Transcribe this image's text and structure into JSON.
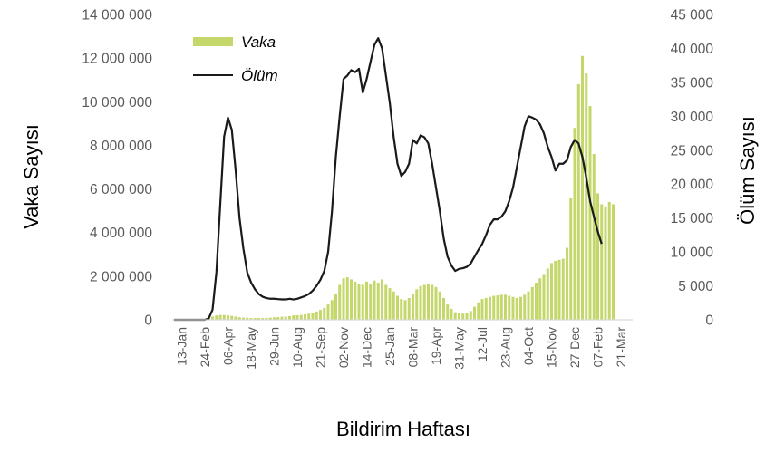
{
  "chart_data": {
    "type": "bar+line",
    "title": "",
    "xlabel": "Bildirim Haftası",
    "ylabel_left": "Vaka Sayısı",
    "ylabel_right": "Ölüm Sayısı",
    "ylim_left": [
      0,
      14000000
    ],
    "ylim_right": [
      0,
      45000
    ],
    "yticks_left": [
      {
        "value": 0,
        "label": "0"
      },
      {
        "value": 2000000,
        "label": "2 000 000"
      },
      {
        "value": 4000000,
        "label": "4 000 000"
      },
      {
        "value": 6000000,
        "label": "6 000 000"
      },
      {
        "value": 8000000,
        "label": "8 000 000"
      },
      {
        "value": 10000000,
        "label": "10 000 000"
      },
      {
        "value": 12000000,
        "label": "12 000 000"
      },
      {
        "value": 14000000,
        "label": "14 000 000"
      }
    ],
    "yticks_right": [
      {
        "value": 0,
        "label": "0"
      },
      {
        "value": 5000,
        "label": "5 000"
      },
      {
        "value": 10000,
        "label": "10 000"
      },
      {
        "value": 15000,
        "label": "15 000"
      },
      {
        "value": 20000,
        "label": "20 000"
      },
      {
        "value": 25000,
        "label": "25 000"
      },
      {
        "value": 30000,
        "label": "30 000"
      },
      {
        "value": 35000,
        "label": "35 000"
      },
      {
        "value": 40000,
        "label": "40 000"
      },
      {
        "value": 45000,
        "label": "45 000"
      }
    ],
    "xticks": [
      {
        "index": 2,
        "label": "13-Jan"
      },
      {
        "index": 8,
        "label": "24-Feb"
      },
      {
        "index": 14,
        "label": "06-Apr"
      },
      {
        "index": 20,
        "label": "18-May"
      },
      {
        "index": 26,
        "label": "29-Jun"
      },
      {
        "index": 32,
        "label": "10-Aug"
      },
      {
        "index": 38,
        "label": "21-Sep"
      },
      {
        "index": 44,
        "label": "02-Nov"
      },
      {
        "index": 50,
        "label": "14-Dec"
      },
      {
        "index": 56,
        "label": "25-Jan"
      },
      {
        "index": 62,
        "label": "08-Mar"
      },
      {
        "index": 68,
        "label": "19-Apr"
      },
      {
        "index": 74,
        "label": "31-May"
      },
      {
        "index": 80,
        "label": "12-Jul"
      },
      {
        "index": 86,
        "label": "23-Aug"
      },
      {
        "index": 92,
        "label": "04-Oct"
      },
      {
        "index": 98,
        "label": "15-Nov"
      },
      {
        "index": 104,
        "label": "27-Dec"
      },
      {
        "index": 110,
        "label": "07-Feb"
      },
      {
        "index": 116,
        "label": "21-Mar"
      }
    ],
    "grid": false,
    "legend_position": "top-left",
    "series": [
      {
        "name": "Vaka",
        "type": "bar",
        "axis": "left",
        "color": "#c4d76a",
        "values": [
          10000,
          10000,
          10000,
          10000,
          10000,
          10000,
          10000,
          10000,
          20000,
          60000,
          150000,
          200000,
          220000,
          220000,
          200000,
          180000,
          150000,
          120000,
          100000,
          90000,
          80000,
          80000,
          80000,
          80000,
          90000,
          100000,
          110000,
          120000,
          140000,
          150000,
          170000,
          200000,
          210000,
          220000,
          250000,
          280000,
          320000,
          380000,
          450000,
          550000,
          700000,
          900000,
          1200000,
          1600000,
          1900000,
          1950000,
          1850000,
          1750000,
          1650000,
          1600000,
          1750000,
          1650000,
          1800000,
          1700000,
          1850000,
          1600000,
          1450000,
          1300000,
          1100000,
          950000,
          900000,
          1000000,
          1200000,
          1400000,
          1550000,
          1600000,
          1650000,
          1600000,
          1500000,
          1300000,
          1000000,
          700000,
          500000,
          350000,
          300000,
          280000,
          300000,
          400000,
          600000,
          800000,
          950000,
          1000000,
          1050000,
          1100000,
          1120000,
          1150000,
          1150000,
          1100000,
          1050000,
          1000000,
          1050000,
          1150000,
          1300000,
          1500000,
          1700000,
          1900000,
          2100000,
          2350000,
          2600000,
          2700000,
          2750000,
          2800000,
          3300000,
          5600000,
          8800000,
          10800000,
          12100000,
          11300000,
          9800000,
          7600000,
          5800000,
          5300000,
          5200000,
          5400000,
          5300000
        ]
      },
      {
        "name": "Ölüm",
        "type": "line",
        "axis": "right",
        "color": "#1a1a1a",
        "values": [
          0,
          0,
          0,
          0,
          0,
          0,
          0,
          0,
          0,
          200,
          1500,
          7000,
          17000,
          27000,
          29800,
          28000,
          22000,
          15000,
          10500,
          7000,
          5500,
          4500,
          3800,
          3400,
          3200,
          3100,
          3100,
          3050,
          3000,
          3000,
          3100,
          3000,
          3100,
          3300,
          3500,
          3800,
          4300,
          5000,
          5900,
          7200,
          10000,
          16000,
          24000,
          30000,
          35500,
          36000,
          36800,
          36500,
          37000,
          33500,
          35500,
          38000,
          40500,
          41500,
          40000,
          36000,
          32000,
          27000,
          23000,
          21200,
          21800,
          23000,
          26500,
          26000,
          27200,
          26900,
          26000,
          23000,
          19500,
          16000,
          12000,
          9300,
          8000,
          7200,
          7500,
          7600,
          7800,
          8300,
          9300,
          10300,
          11200,
          12500,
          14000,
          14800,
          14800,
          15200,
          16000,
          17500,
          19500,
          22500,
          25500,
          28500,
          30000,
          29800,
          29500,
          28800,
          27500,
          25500,
          24000,
          22000,
          23000,
          23000,
          23500,
          25500,
          26500,
          26000,
          24000,
          21000,
          17500,
          15200,
          13000,
          11200
        ]
      }
    ]
  }
}
